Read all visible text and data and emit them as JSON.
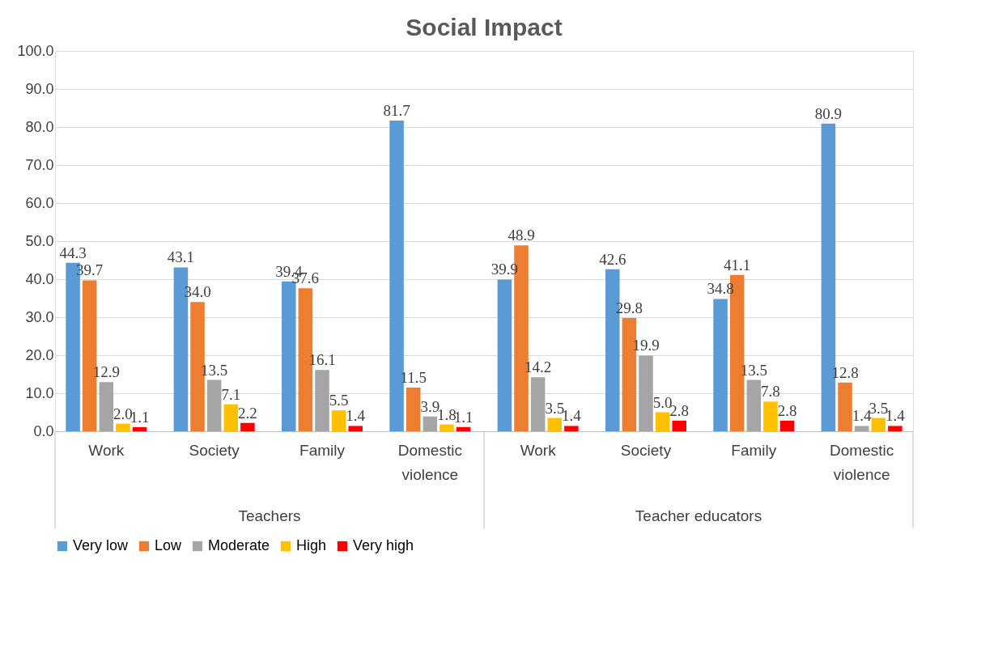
{
  "chart_data": {
    "type": "bar",
    "title": "Social Impact",
    "categories": [
      "Work",
      "Society",
      "Family",
      "Domestic violence",
      "Work",
      "Society",
      "Family",
      "Domestic violence"
    ],
    "series": [
      {
        "name": "Very low",
        "color": "#5b9bd5",
        "values": [
          44.3,
          43.1,
          39.4,
          81.7,
          39.9,
          42.6,
          34.8,
          80.9
        ],
        "value_labels": [
          "44.3",
          "43.1",
          "39.4",
          "81.7",
          "39.9",
          "42.6",
          "34.8",
          "80.9"
        ]
      },
      {
        "name": "Low",
        "color": "#ed7d31",
        "values": [
          39.7,
          34.0,
          37.6,
          11.5,
          48.9,
          29.8,
          41.1,
          12.8
        ],
        "value_labels": [
          "39.7",
          "34.0",
          "37.6",
          "11.5",
          "48.9",
          "29.8",
          "41.1",
          "12.8"
        ]
      },
      {
        "name": "Moderate",
        "color": "#a5a5a5",
        "values": [
          12.9,
          13.5,
          16.1,
          3.9,
          14.2,
          19.9,
          13.5,
          1.4
        ],
        "value_labels": [
          "12.9",
          "13.5",
          "16.1",
          "3.9",
          "14.2",
          "19.9",
          "13.5",
          "1.4"
        ]
      },
      {
        "name": "High",
        "color": "#ffc000",
        "values": [
          2.0,
          7.1,
          5.5,
          1.8,
          3.5,
          5.0,
          7.8,
          3.5
        ],
        "value_labels": [
          "2.0",
          "7.1",
          "5.5",
          "1.8",
          "3.5",
          "5.0",
          "7.8",
          "3.5"
        ]
      },
      {
        "name": "Very high",
        "color": "#ff0000",
        "values": [
          1.1,
          2.2,
          1.4,
          1.1,
          1.4,
          2.8,
          2.8,
          1.4
        ],
        "value_labels": [
          "1.1",
          "2.2",
          "1.4",
          "1.1",
          "1.4",
          "2.8",
          "2.8",
          "1.4"
        ]
      }
    ],
    "annotations": [
      "Teachers",
      "Teacher educators"
    ],
    "ylim": [
      0,
      100
    ],
    "yticks": [
      {
        "value": 0,
        "label": "0.0"
      },
      {
        "value": 10,
        "label": "10.0"
      },
      {
        "value": 20,
        "label": "20.0"
      },
      {
        "value": 30,
        "label": "30.0"
      },
      {
        "value": 40,
        "label": "40.0"
      },
      {
        "value": 50,
        "label": "50.0"
      },
      {
        "value": 60,
        "label": "60.0"
      },
      {
        "value": 70,
        "label": "70.0"
      },
      {
        "value": 80,
        "label": "80.0"
      },
      {
        "value": 90,
        "label": "90.0"
      },
      {
        "value": 100,
        "label": "100.0"
      }
    ],
    "grid": "y",
    "legend": "bottom"
  }
}
